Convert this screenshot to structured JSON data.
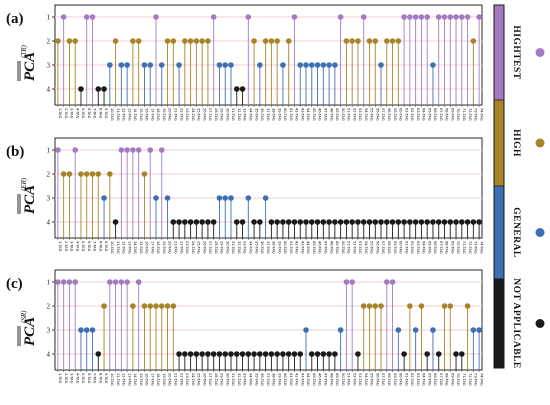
{
  "chart_data": {
    "type": "lollipop",
    "x_labels": [
      "1-TAG",
      "2-TAG",
      "3-TAG",
      "4-TAG",
      "5-TAG",
      "6-TAG",
      "7-TAG",
      "8-TAG",
      "9-TAG",
      "10-TAG",
      "11-TAG",
      "12-TAG",
      "13-TAG",
      "14-TAG",
      "15-TAG",
      "16-TAG",
      "17-TAG",
      "18-TAG",
      "19-TAG",
      "20-TAG",
      "21-TAG",
      "22-TAG",
      "23-TAG",
      "24-TAG",
      "25-TAG",
      "26-TAG",
      "27-TAG",
      "28-TAG",
      "29-TAG",
      "30-TAG",
      "31-TAG",
      "32-TAG",
      "33-TAG",
      "34-TAG",
      "35-TAG",
      "36-TAG",
      "37-TAG",
      "38-TAG",
      "39-TAG",
      "40-TAG",
      "41-TAG",
      "42-TAG",
      "43-TAG",
      "44-TAG",
      "45-TAG",
      "46-TAG",
      "47-TAG",
      "48-TAG",
      "49-TAG",
      "50-TAG",
      "51-TAG",
      "52-TAG",
      "53-TAG",
      "54-TAG",
      "55-TAG",
      "56-TAG",
      "57-TAG",
      "58-TAG",
      "59-TAG",
      "60-TAG",
      "61-TAG",
      "62-TAG",
      "63-TAG",
      "64-TAG",
      "65-TAG",
      "66-TAG",
      "67-TAG",
      "68-TAG",
      "69-TAG",
      "70-TAG",
      "71-TAG",
      "72-TAG",
      "73-TAG",
      "74-TAG"
    ],
    "ytick_labels": [
      "1",
      "2",
      "3",
      "4"
    ],
    "level_colors": {
      "1": "#a57ac2",
      "2": "#a88428",
      "3": "#3d6fb3",
      "4": "#1a1a1a"
    },
    "legend": {
      "categories": [
        "HIGHTEST",
        "HIGH",
        "GENERAL",
        "NOT APPLICABLE"
      ],
      "colors": [
        "#a57ac2",
        "#a88428",
        "#3d6fb3",
        "#1a1a1a"
      ]
    },
    "panels": [
      {
        "label": "(a)",
        "ylabel": "PCA",
        "ylabel_sup": "(TR)",
        "values": [
          2,
          1,
          2,
          2,
          4,
          1,
          1,
          4,
          4,
          3,
          2,
          3,
          3,
          2,
          2,
          3,
          3,
          1,
          3,
          2,
          2,
          3,
          2,
          2,
          2,
          2,
          2,
          1,
          3,
          3,
          3,
          4,
          4,
          1,
          2,
          3,
          2,
          2,
          2,
          3,
          2,
          1,
          3,
          3,
          3,
          3,
          3,
          3,
          3,
          1,
          2,
          2,
          2,
          1,
          2,
          2,
          3,
          2,
          2,
          2,
          1,
          1,
          1,
          1,
          1,
          3,
          1,
          1,
          1,
          1,
          1,
          1,
          2,
          1
        ]
      },
      {
        "label": "(b)",
        "ylabel": "PCA",
        "ylabel_sup": "(ER)",
        "values": [
          1,
          2,
          2,
          1,
          2,
          2,
          2,
          2,
          3,
          2,
          4,
          1,
          1,
          1,
          1,
          2,
          1,
          3,
          1,
          3,
          4,
          4,
          4,
          4,
          4,
          4,
          4,
          4,
          3,
          3,
          3,
          4,
          4,
          3,
          4,
          4,
          3,
          4,
          4,
          4,
          4,
          4,
          4,
          4,
          4,
          4,
          4,
          4,
          4,
          4,
          4,
          4,
          4,
          4,
          4,
          4,
          4,
          4,
          4,
          4,
          4,
          4,
          4,
          4,
          4,
          4,
          4,
          4,
          4,
          4,
          4,
          4,
          4,
          4
        ]
      },
      {
        "label": "(c)",
        "ylabel": "PCA",
        "ylabel_sup": "(SR)",
        "values": [
          1,
          1,
          1,
          1,
          3,
          3,
          3,
          4,
          2,
          1,
          1,
          1,
          1,
          2,
          1,
          2,
          2,
          2,
          2,
          2,
          2,
          4,
          4,
          4,
          4,
          4,
          4,
          4,
          4,
          4,
          4,
          4,
          4,
          4,
          4,
          4,
          4,
          4,
          4,
          4,
          4,
          4,
          4,
          3,
          4,
          4,
          4,
          4,
          4,
          3,
          1,
          1,
          4,
          2,
          2,
          2,
          2,
          1,
          1,
          3,
          4,
          2,
          3,
          2,
          4,
          3,
          4,
          2,
          2,
          4,
          4,
          2,
          3,
          3
        ]
      }
    ]
  }
}
